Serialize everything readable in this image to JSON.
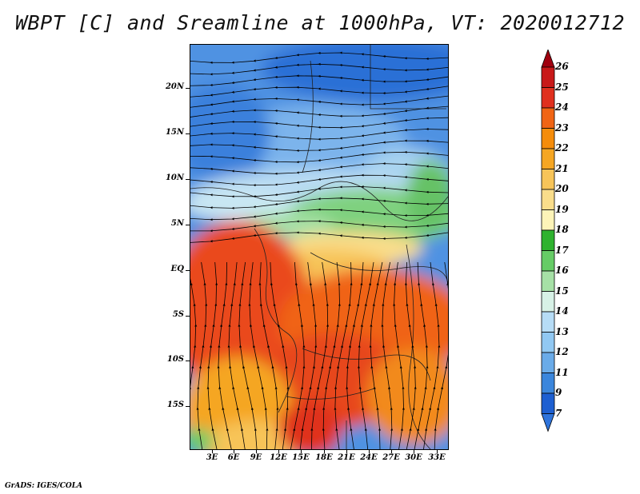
{
  "title": "WBPT [C] and Sreamline at 1000hPa, VT: 2020012712",
  "footer": "GrADS: IGES/COLA",
  "map": {
    "variable": "WBPT [C]",
    "level": "1000hPa",
    "valid_time": "2020012712",
    "lat_labels": [
      "20N",
      "15N",
      "10N",
      "5N",
      "EQ",
      "5S",
      "10S",
      "15S"
    ],
    "lon_labels": [
      "3E",
      "6E",
      "9E",
      "12E",
      "15E",
      "18E",
      "21E",
      "24E",
      "27E",
      "30E",
      "33E"
    ]
  },
  "colorbar": {
    "levels": [
      "26",
      "25",
      "24",
      "23",
      "22",
      "21",
      "20",
      "19",
      "18",
      "17",
      "16",
      "15",
      "14",
      "13",
      "12",
      "11",
      "9",
      "7"
    ],
    "colors": [
      "#a0000f",
      "#c81919",
      "#e0301e",
      "#f06414",
      "#f58c0a",
      "#f5a623",
      "#f7c459",
      "#f9dd8b",
      "#fdf4b8",
      "#2fb22f",
      "#66cc66",
      "#a6e0a6",
      "#d7f1e6",
      "#b6dcf6",
      "#91c8f2",
      "#6aabe8",
      "#3b86dc",
      "#1d5fd1",
      "#2f74dc"
    ]
  }
}
